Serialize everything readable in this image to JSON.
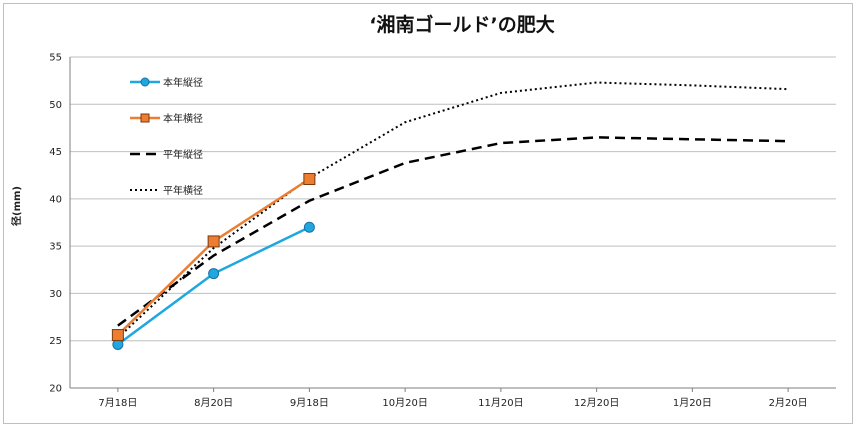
{
  "chart_data": {
    "type": "line",
    "title": "‘湘南ゴールド’の肥大",
    "xlabel": "",
    "ylabel": "径(mm)",
    "ylim": [
      20,
      55
    ],
    "yticks": [
      20,
      25,
      30,
      35,
      40,
      45,
      50,
      55
    ],
    "categories": [
      "7月18日",
      "8月20日",
      "9月18日",
      "10月20日",
      "11月20日",
      "12月20日",
      "1月20日",
      "2月20日"
    ],
    "grid": true,
    "legend_position": "top-left",
    "series": [
      {
        "name": "本年縦径",
        "values": [
          24.6,
          32.1,
          37.0,
          null,
          null,
          null,
          null,
          null
        ],
        "color": "#1fa7df",
        "style": "solid",
        "marker": "circle"
      },
      {
        "name": "本年横径",
        "values": [
          25.6,
          35.5,
          42.1,
          null,
          null,
          null,
          null,
          null
        ],
        "color": "#ed7d31",
        "style": "solid",
        "marker": "square"
      },
      {
        "name": "平年縦径",
        "values": [
          26.6,
          34.0,
          39.8,
          43.8,
          45.9,
          46.5,
          46.3,
          46.1
        ],
        "color": "#000000",
        "style": "dashed",
        "marker": "none"
      },
      {
        "name": "平年横径",
        "values": [
          25.3,
          34.8,
          42.2,
          48.1,
          51.2,
          52.3,
          52.0,
          51.6
        ],
        "color": "#000000",
        "style": "dotted",
        "marker": "none"
      }
    ]
  }
}
